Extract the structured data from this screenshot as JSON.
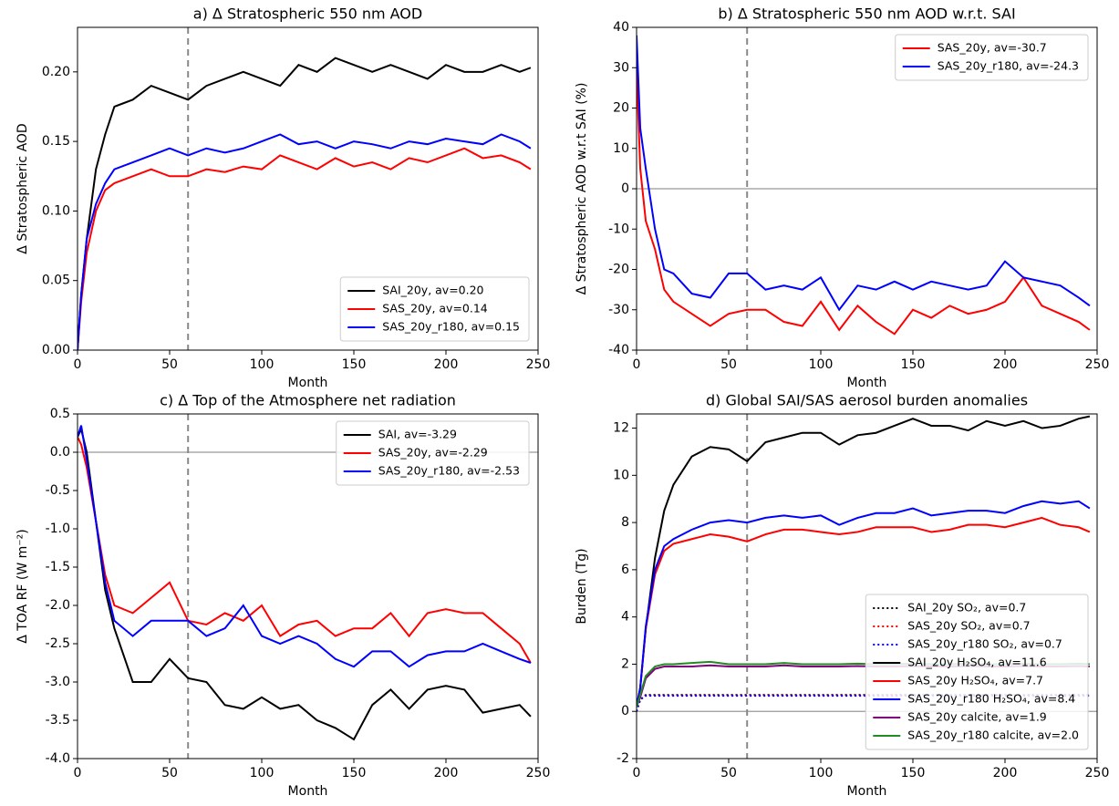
{
  "chart_data": [
    {
      "type": "line",
      "title": "a) Δ Stratospheric 550 nm AOD",
      "xlabel": "Month",
      "ylabel": "Δ Stratospheric AOD",
      "x": [
        0,
        2,
        5,
        10,
        15,
        20,
        30,
        40,
        50,
        60,
        70,
        80,
        90,
        100,
        110,
        120,
        130,
        140,
        150,
        160,
        170,
        180,
        190,
        200,
        210,
        220,
        230,
        240,
        246
      ],
      "xlim": [
        0,
        250
      ],
      "xticks": [
        0,
        50,
        100,
        150,
        200,
        250
      ],
      "ylim": [
        0,
        0.232
      ],
      "yticks": [
        {
          "value": 0,
          "label": "0.00"
        },
        {
          "value": 0.05,
          "label": "0.05"
        },
        {
          "value": 0.1,
          "label": "0.10"
        },
        {
          "value": 0.15,
          "label": "0.15"
        },
        {
          "value": 0.2,
          "label": "0.20"
        }
      ],
      "vline": 60,
      "legend": "lower right",
      "series": [
        {
          "name": "SAI_20y, av=0.20",
          "color": "#000000",
          "values": [
            0,
            0.04,
            0.08,
            0.13,
            0.155,
            0.175,
            0.18,
            0.19,
            0.185,
            0.18,
            0.19,
            0.195,
            0.2,
            0.195,
            0.19,
            0.205,
            0.2,
            0.21,
            0.205,
            0.2,
            0.205,
            0.2,
            0.195,
            0.205,
            0.2,
            0.2,
            0.205,
            0.2,
            0.203
          ]
        },
        {
          "name": "SAS_20y, av=0.14",
          "color": "#ff0000",
          "values": [
            0,
            0.035,
            0.07,
            0.1,
            0.115,
            0.12,
            0.125,
            0.13,
            0.125,
            0.125,
            0.13,
            0.128,
            0.132,
            0.13,
            0.14,
            0.135,
            0.13,
            0.138,
            0.132,
            0.135,
            0.13,
            0.138,
            0.135,
            0.14,
            0.145,
            0.138,
            0.14,
            0.135,
            0.13
          ]
        },
        {
          "name": "SAS_20y_r180, av=0.15",
          "color": "#0000ff",
          "values": [
            0,
            0.04,
            0.08,
            0.105,
            0.12,
            0.13,
            0.135,
            0.14,
            0.145,
            0.14,
            0.145,
            0.142,
            0.145,
            0.15,
            0.155,
            0.148,
            0.15,
            0.145,
            0.15,
            0.148,
            0.145,
            0.15,
            0.148,
            0.152,
            0.15,
            0.148,
            0.155,
            0.15,
            0.145
          ]
        }
      ]
    },
    {
      "type": "line",
      "title": "b) Δ Stratospheric 550 nm AOD w.r.t. SAI",
      "xlabel": "Month",
      "ylabel": "Δ Stratospheric AOD w.r.t SAI (%)",
      "x": [
        0,
        2,
        5,
        10,
        15,
        20,
        30,
        40,
        50,
        60,
        70,
        80,
        90,
        100,
        110,
        120,
        130,
        140,
        150,
        160,
        170,
        180,
        190,
        200,
        210,
        220,
        230,
        240,
        246
      ],
      "xlim": [
        0,
        250
      ],
      "xticks": [
        0,
        50,
        100,
        150,
        200,
        250
      ],
      "ylim": [
        -40,
        40
      ],
      "yticks": [
        -40,
        -30,
        -20,
        -10,
        0,
        10,
        20,
        30,
        40
      ],
      "vline": 60,
      "hline": 0,
      "legend": "upper right",
      "series": [
        {
          "name": "SAS_20y, av=-30.7",
          "color": "#ff0000",
          "values": [
            30,
            5,
            -8,
            -15,
            -25,
            -28,
            -31,
            -34,
            -31,
            -30,
            -30,
            -33,
            -34,
            -28,
            -35,
            -29,
            -33,
            -36,
            -30,
            -32,
            -29,
            -31,
            -30,
            -28,
            -22,
            -29,
            -31,
            -33,
            -35
          ]
        },
        {
          "name": "SAS_20y_r180, av=-24.3",
          "color": "#0000ff",
          "values": [
            38,
            15,
            5,
            -10,
            -20,
            -21,
            -26,
            -27,
            -21,
            -21,
            -25,
            -24,
            -25,
            -22,
            -30,
            -24,
            -25,
            -23,
            -25,
            -23,
            -24,
            -25,
            -24,
            -18,
            -22,
            -23,
            -24,
            -27,
            -29
          ]
        }
      ]
    },
    {
      "type": "line",
      "title": "c) Δ Top of the Atmosphere net radiation",
      "xlabel": "Month",
      "ylabel": "Δ TOA RF (W m⁻²)",
      "x": [
        0,
        2,
        5,
        10,
        15,
        20,
        30,
        40,
        50,
        60,
        70,
        80,
        90,
        100,
        110,
        120,
        130,
        140,
        150,
        160,
        170,
        180,
        190,
        200,
        210,
        220,
        230,
        240,
        246
      ],
      "xlim": [
        0,
        250
      ],
      "xticks": [
        0,
        50,
        100,
        150,
        200,
        250
      ],
      "ylim": [
        -4,
        0.5
      ],
      "yticks": [
        {
          "value": -4,
          "label": "-4.0"
        },
        -3.5,
        {
          "value": -3,
          "label": "-3.0"
        },
        -2.5,
        {
          "value": -2,
          "label": "-2.0"
        },
        -1.5,
        {
          "value": -1,
          "label": "-1.0"
        },
        -0.5,
        {
          "value": 0,
          "label": "0.0"
        },
        0.5
      ],
      "vline": 60,
      "hline": 0,
      "legend": "upper right",
      "series": [
        {
          "name": "SAI, av=-3.29",
          "color": "#000000",
          "values": [
            0.2,
            0.3,
            0.0,
            -0.9,
            -1.8,
            -2.3,
            -3.0,
            -3.0,
            -2.7,
            -2.95,
            -3.0,
            -3.3,
            -3.35,
            -3.2,
            -3.35,
            -3.3,
            -3.5,
            -3.6,
            -3.75,
            -3.3,
            -3.1,
            -3.35,
            -3.1,
            -3.05,
            -3.1,
            -3.4,
            -3.35,
            -3.3,
            -3.45
          ]
        },
        {
          "name": "SAS_20y, av=-2.29",
          "color": "#ff0000",
          "values": [
            0.2,
            0.1,
            -0.2,
            -0.9,
            -1.6,
            -2.0,
            -2.1,
            -1.9,
            -1.7,
            -2.2,
            -2.25,
            -2.1,
            -2.2,
            -2.0,
            -2.4,
            -2.25,
            -2.2,
            -2.4,
            -2.3,
            -2.3,
            -2.1,
            -2.4,
            -2.1,
            -2.05,
            -2.1,
            -2.1,
            -2.3,
            -2.5,
            -2.75
          ]
        },
        {
          "name": "SAS_20y_r180, av=-2.53",
          "color": "#0000ff",
          "values": [
            0.2,
            0.35,
            -0.1,
            -0.9,
            -1.7,
            -2.2,
            -2.4,
            -2.2,
            -2.2,
            -2.2,
            -2.4,
            -2.3,
            -2.0,
            -2.4,
            -2.5,
            -2.4,
            -2.5,
            -2.7,
            -2.8,
            -2.6,
            -2.6,
            -2.8,
            -2.65,
            -2.6,
            -2.6,
            -2.5,
            -2.6,
            -2.7,
            -2.75
          ]
        }
      ]
    },
    {
      "type": "line",
      "title": "d) Global SAI/SAS aerosol burden anomalies",
      "xlabel": "Month",
      "ylabel": "Burden (Tg)",
      "x": [
        0,
        2,
        5,
        10,
        15,
        20,
        30,
        40,
        50,
        60,
        70,
        80,
        90,
        100,
        110,
        120,
        130,
        140,
        150,
        160,
        170,
        180,
        190,
        200,
        210,
        220,
        230,
        240,
        246
      ],
      "xlim": [
        0,
        250
      ],
      "xticks": [
        0,
        50,
        100,
        150,
        200,
        250
      ],
      "ylim": [
        -2,
        12.6
      ],
      "yticks": [
        -2,
        0,
        2,
        4,
        6,
        8,
        10,
        12
      ],
      "vline": 60,
      "hline": 0,
      "legend": "lower right",
      "series": [
        {
          "name": "SAI_20y SO₂, av=0.7",
          "color": "#000000",
          "style": "dotted",
          "values": [
            0,
            0.5,
            0.7,
            0.7,
            0.7,
            0.7,
            0.7,
            0.7,
            0.7,
            0.7,
            0.7,
            0.7,
            0.7,
            0.7,
            0.7,
            0.7,
            0.7,
            0.7,
            0.7,
            0.7,
            0.7,
            0.7,
            0.7,
            0.7,
            0.7,
            0.7,
            0.7,
            0.7,
            0.7
          ]
        },
        {
          "name": "SAS_20y SO₂, av=0.7",
          "color": "#ff0000",
          "style": "dotted",
          "values": [
            0,
            0.5,
            0.68,
            0.68,
            0.68,
            0.68,
            0.68,
            0.68,
            0.68,
            0.68,
            0.68,
            0.68,
            0.68,
            0.68,
            0.68,
            0.68,
            0.68,
            0.68,
            0.68,
            0.68,
            0.68,
            0.68,
            0.68,
            0.68,
            0.68,
            0.68,
            0.68,
            0.68,
            0.68
          ]
        },
        {
          "name": "SAS_20y_r180 SO₂, av=0.7",
          "color": "#0000ff",
          "style": "dotted",
          "values": [
            0,
            0.5,
            0.66,
            0.66,
            0.66,
            0.66,
            0.66,
            0.66,
            0.66,
            0.66,
            0.66,
            0.66,
            0.66,
            0.66,
            0.66,
            0.66,
            0.66,
            0.66,
            0.66,
            0.66,
            0.66,
            0.66,
            0.66,
            0.66,
            0.66,
            0.66,
            0.66,
            0.66,
            0.66
          ]
        },
        {
          "name": "SAI_20y H₂SO₄, av=11.6",
          "color": "#000000",
          "values": [
            0.2,
            1,
            3.5,
            6.5,
            8.5,
            9.6,
            10.8,
            11.2,
            11.1,
            10.6,
            11.4,
            11.6,
            11.8,
            11.8,
            11.3,
            11.7,
            11.8,
            12.1,
            12.4,
            12.1,
            12.1,
            11.9,
            12.3,
            12.1,
            12.3,
            12.0,
            12.1,
            12.4,
            12.5
          ]
        },
        {
          "name": "SAS_20y H₂SO₄, av=7.7",
          "color": "#ff0000",
          "values": [
            0.2,
            1,
            3.5,
            5.8,
            6.8,
            7.1,
            7.3,
            7.5,
            7.4,
            7.2,
            7.5,
            7.7,
            7.7,
            7.6,
            7.5,
            7.6,
            7.8,
            7.8,
            7.8,
            7.6,
            7.7,
            7.9,
            7.9,
            7.8,
            8.0,
            8.2,
            7.9,
            7.8,
            7.6
          ]
        },
        {
          "name": "SAS_20y_r180 H₂SO₄, av=8.4",
          "color": "#0000ff",
          "values": [
            0.2,
            1,
            3.6,
            6.0,
            7.0,
            7.3,
            7.7,
            8.0,
            8.1,
            8.0,
            8.2,
            8.3,
            8.2,
            8.3,
            7.9,
            8.2,
            8.4,
            8.4,
            8.6,
            8.3,
            8.4,
            8.5,
            8.5,
            8.4,
            8.7,
            8.9,
            8.8,
            8.9,
            8.6
          ]
        },
        {
          "name": "SAS_20y calcite, av=1.9",
          "color": "#800080",
          "values": [
            0.2,
            0.6,
            1.4,
            1.8,
            1.9,
            1.9,
            1.9,
            1.95,
            1.9,
            1.9,
            1.9,
            1.95,
            1.9,
            1.9,
            1.9,
            1.92,
            1.9,
            1.9,
            1.92,
            1.9,
            1.9,
            1.92,
            1.9,
            1.9,
            1.92,
            1.9,
            1.9,
            1.92,
            1.9
          ]
        },
        {
          "name": "SAS_20y_r180 calcite, av=2.0",
          "color": "#228b22",
          "values": [
            0.2,
            0.7,
            1.5,
            1.9,
            2.0,
            2.0,
            2.05,
            2.1,
            2.0,
            2.0,
            2.0,
            2.05,
            2.0,
            2.0,
            2.0,
            2.02,
            2.0,
            2.0,
            2.02,
            2.0,
            2.0,
            2.02,
            2.0,
            2.0,
            2.02,
            2.0,
            2.0,
            2.02,
            2.0
          ]
        }
      ]
    }
  ]
}
